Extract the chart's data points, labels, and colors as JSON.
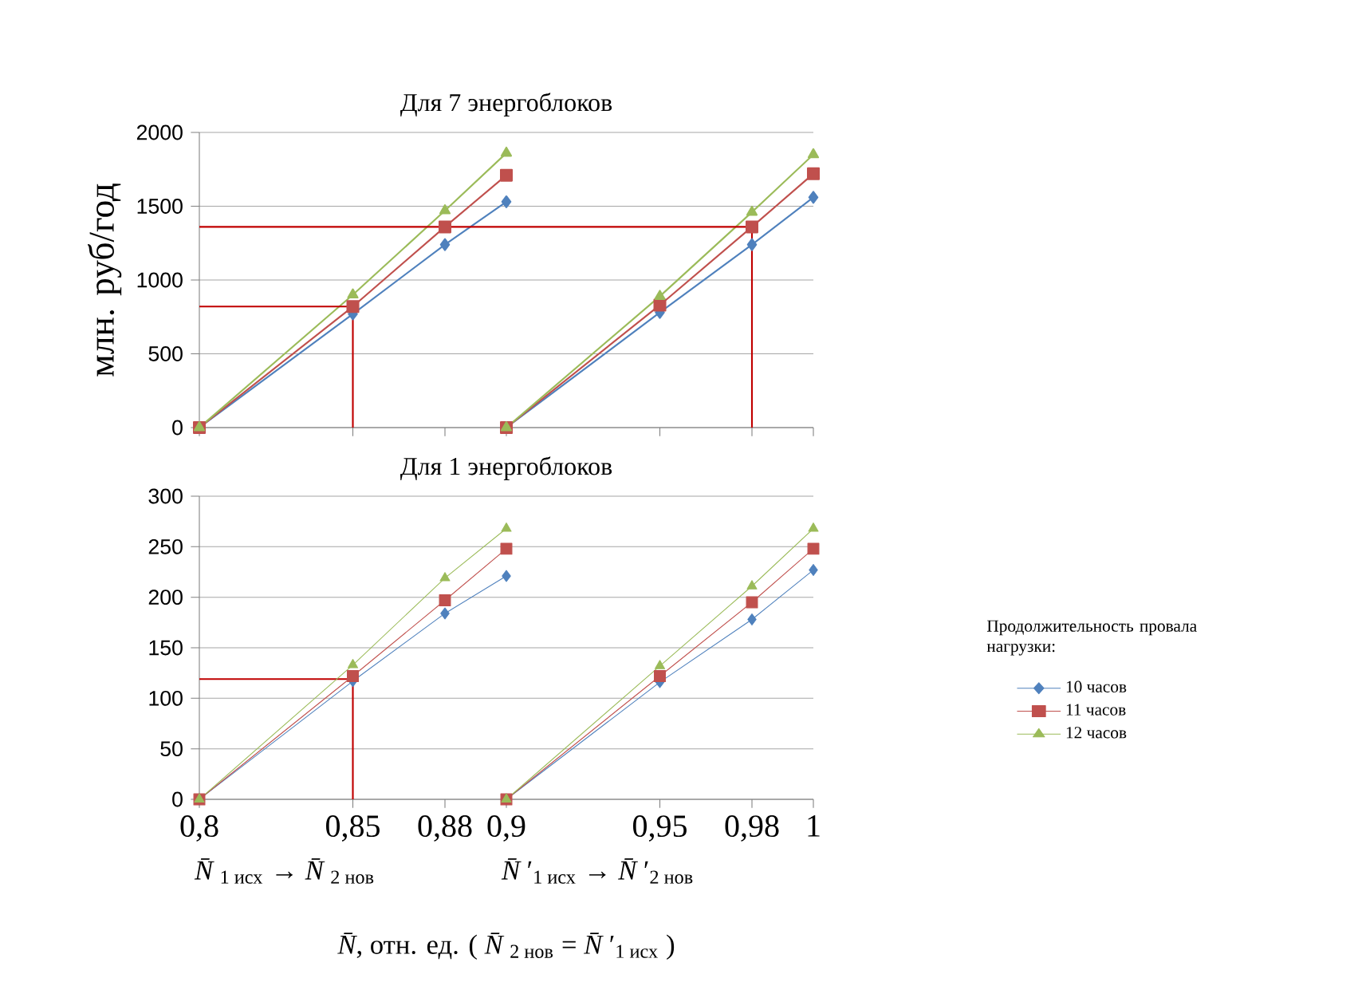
{
  "chart_data": [
    {
      "type": "line",
      "title": "Для 7 энергоблоков",
      "ylabel": "млн. руб/год",
      "xlim": [
        0.8,
        1
      ],
      "xticks": [
        {
          "value": 0.8,
          "label": null
        },
        {
          "value": 0.85,
          "label": null
        },
        {
          "value": 0.88,
          "label": null
        },
        {
          "value": 0.9,
          "label": null
        },
        {
          "value": 0.95,
          "label": null
        },
        {
          "value": 0.98,
          "label": null
        },
        {
          "value": 1,
          "label": null
        }
      ],
      "ylim": [
        0,
        2000
      ],
      "yticks": [
        0,
        500,
        1000,
        1500,
        2000
      ],
      "grid": "y",
      "tick_labels": "y",
      "series": [
        {
          "color": "#4f81bd",
          "marker": "diamond",
          "x": [
            0.8,
            0.85,
            0.88,
            0.9,
            null,
            0.9,
            0.95,
            0.98,
            1
          ],
          "values": [
            0,
            770,
            1240,
            1530,
            null,
            0,
            780,
            1240,
            1560
          ]
        },
        {
          "color": "#c0504d",
          "marker": "square",
          "x": [
            0.8,
            0.85,
            0.88,
            0.9,
            null,
            0.9,
            0.95,
            0.98,
            1
          ],
          "values": [
            0,
            820,
            1360,
            1710,
            null,
            0,
            830,
            1360,
            1720
          ]
        },
        {
          "color": "#9bbb59",
          "marker": "triangle",
          "x": [
            0.8,
            0.85,
            0.88,
            0.9,
            null,
            0.9,
            0.95,
            0.98,
            1
          ],
          "values": [
            0,
            900,
            1470,
            1860,
            null,
            0,
            890,
            1460,
            1850
          ]
        },
        {
          "color": "#c00000",
          "marker": "none",
          "x": [
            0.85,
            0.85,
            0.8
          ],
          "values": [
            0,
            820,
            820
          ]
        },
        {
          "color": "#c00000",
          "marker": "none",
          "x": [
            0.98,
            0.98,
            0.8
          ],
          "values": [
            0,
            1360,
            1360
          ]
        }
      ]
    },
    {
      "type": "line",
      "title": "Для 1 энергоблоков",
      "xlabel": "*N̄*, отн. ед.   ( *N̄*$_{2 нов}$ = *N̄*′$_{1 исх}$ )",
      "legend_title": "Продолжительность провала нагрузки:",
      "legend": "right",
      "annotations": [
        "*N̄*$_{1 исх}$ → *N̄*$_{2 нов}$",
        "*N̄*′$_{1 исх}$ → *N̄*′$_{2 нов}$"
      ],
      "xlim": [
        0.8,
        1
      ],
      "xticks": [
        {
          "value": 0.8,
          "label": "0,8"
        },
        {
          "value": 0.85,
          "label": "0,85"
        },
        {
          "value": 0.88,
          "label": "0,88"
        },
        {
          "value": 0.9,
          "label": "0,9"
        },
        {
          "value": 0.95,
          "label": "0,95"
        },
        {
          "value": 0.98,
          "label": "0,98"
        },
        {
          "value": 1,
          "label": "1"
        }
      ],
      "ylim": [
        0,
        300
      ],
      "yticks": [
        0,
        50,
        100,
        150,
        200,
        250,
        300
      ],
      "grid": "y",
      "series": [
        {
          "color": "#c00000",
          "marker": "none",
          "x": [
            0.85,
            0.85,
            0.8
          ],
          "values": [
            0,
            119,
            119
          ]
        },
        {
          "name": "10  часов",
          "color": "#4f81bd",
          "marker": "diamond",
          "x": [
            0.8,
            0.85,
            0.88,
            0.9,
            null,
            0.9,
            0.95,
            0.98,
            1
          ],
          "values": [
            0,
            117,
            184,
            221,
            null,
            0,
            116,
            178,
            227
          ]
        },
        {
          "name": "11  часов",
          "color": "#c0504d",
          "marker": "square",
          "x": [
            0.8,
            0.85,
            0.88,
            0.9,
            null,
            0.9,
            0.95,
            0.98,
            1
          ],
          "values": [
            0,
            122,
            197,
            248,
            null,
            0,
            122,
            195,
            248
          ]
        },
        {
          "name": "12  часов",
          "color": "#9bbb59",
          "marker": "triangle",
          "x": [
            0.8,
            0.85,
            0.88,
            0.9,
            null,
            0.9,
            0.95,
            0.98,
            1
          ],
          "values": [
            0,
            133,
            219,
            268,
            null,
            0,
            132,
            211,
            268
          ]
        }
      ]
    }
  ]
}
